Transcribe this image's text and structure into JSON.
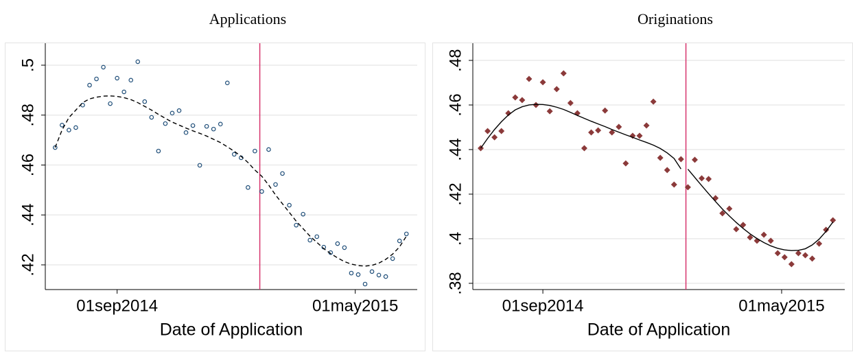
{
  "chart_data": [
    {
      "type": "scatter",
      "title": "Applications",
      "xlabel": "Date of Application",
      "x": [
        "2014-06-30",
        "2014-07-07",
        "2014-07-14",
        "2014-07-21",
        "2014-07-28",
        "2014-08-04",
        "2014-08-11",
        "2014-08-18",
        "2014-08-25",
        "2014-09-01",
        "2014-09-08",
        "2014-09-15",
        "2014-09-22",
        "2014-09-29",
        "2014-10-06",
        "2014-10-13",
        "2014-10-20",
        "2014-10-27",
        "2014-11-03",
        "2014-11-10",
        "2014-11-17",
        "2014-11-24",
        "2014-12-01",
        "2014-12-08",
        "2014-12-15",
        "2014-12-22",
        "2014-12-29",
        "2015-01-05",
        "2015-01-12",
        "2015-01-19",
        "2015-01-26",
        "2015-02-02",
        "2015-02-09",
        "2015-02-16",
        "2015-02-23",
        "2015-03-02",
        "2015-03-09",
        "2015-03-16",
        "2015-03-23",
        "2015-03-30",
        "2015-04-06",
        "2015-04-13",
        "2015-04-20",
        "2015-04-27",
        "2015-05-04",
        "2015-05-11",
        "2015-05-18",
        "2015-05-25",
        "2015-06-01",
        "2015-06-08",
        "2015-06-15",
        "2015-06-22"
      ],
      "points": {
        "color": "#1f4e79",
        "marker": "circle",
        "values": [
          0.467,
          0.476,
          0.474,
          0.475,
          0.484,
          0.492,
          0.4945,
          0.4992,
          0.4846,
          0.4948,
          0.4893,
          0.494,
          0.5014,
          0.4854,
          0.4791,
          0.4656,
          0.4766,
          0.4808,
          0.4818,
          0.473,
          0.4758,
          0.4599,
          0.4755,
          0.4744,
          0.4764,
          0.4929,
          0.4643,
          0.4629,
          0.451,
          0.4656,
          0.4494,
          0.4662,
          0.4522,
          0.4566,
          0.4439,
          0.4359,
          0.4403,
          0.4299,
          0.4313,
          0.4271,
          0.4249,
          0.4285,
          0.4269,
          0.4167,
          0.4161,
          0.4123,
          0.4173,
          0.4159,
          0.4153,
          0.4225,
          0.4296,
          0.4324
        ]
      },
      "fit": [
        {
          "color": "#000000",
          "dashed": true,
          "values": [
            0.467,
            0.474,
            0.479,
            0.482,
            0.485,
            0.4865,
            0.4872,
            0.4876,
            0.4877,
            0.4875,
            0.487,
            0.4862,
            0.485,
            0.4835,
            0.482,
            0.4803,
            0.4787,
            0.4772,
            0.476,
            0.4748,
            0.4737,
            0.4727,
            0.4716,
            0.4703,
            0.469,
            0.4673,
            0.4655,
            0.4635,
            0.461,
            0.458,
            0.4555,
            0.452,
            0.448,
            0.4445,
            0.441,
            0.4375,
            0.4345,
            0.4315,
            0.429,
            0.4265,
            0.4245,
            0.4228,
            0.4213,
            0.4203,
            0.4197,
            0.4195,
            0.4198,
            0.4207,
            0.4222,
            0.4243,
            0.4272,
            0.4315
          ]
        }
      ],
      "cutoff": "2015-01-24",
      "cutoff_color": "#d6336c",
      "xlim": [
        "2014-06-20",
        "2015-07-03"
      ],
      "xticks": [
        {
          "value": "2014-09-01",
          "label": "01sep2014"
        },
        {
          "value": "2015-05-01",
          "label": "01may2015"
        }
      ],
      "ylim": [
        0.4101,
        0.5088
      ],
      "yticks": [
        {
          "value": 0.42,
          "label": ".42"
        },
        {
          "value": 0.44,
          "label": ".44"
        },
        {
          "value": 0.46,
          "label": ".46"
        },
        {
          "value": 0.48,
          "label": ".48"
        },
        {
          "value": 0.5,
          "label": ".5"
        }
      ],
      "grid": true
    },
    {
      "type": "scatter",
      "title": "Originations",
      "xlabel": "Date of Application",
      "x": [
        "2014-06-30",
        "2014-07-07",
        "2014-07-14",
        "2014-07-21",
        "2014-07-28",
        "2014-08-04",
        "2014-08-11",
        "2014-08-18",
        "2014-08-25",
        "2014-09-01",
        "2014-09-08",
        "2014-09-15",
        "2014-09-22",
        "2014-09-29",
        "2014-10-06",
        "2014-10-13",
        "2014-10-20",
        "2014-10-27",
        "2014-11-03",
        "2014-11-10",
        "2014-11-17",
        "2014-11-24",
        "2014-12-01",
        "2014-12-08",
        "2014-12-15",
        "2014-12-22",
        "2014-12-29",
        "2015-01-05",
        "2015-01-12",
        "2015-01-19",
        "2015-01-26",
        "2015-02-02",
        "2015-02-09",
        "2015-02-16",
        "2015-02-23",
        "2015-03-02",
        "2015-03-09",
        "2015-03-16",
        "2015-03-23",
        "2015-03-30",
        "2015-04-06",
        "2015-04-13",
        "2015-04-20",
        "2015-04-27",
        "2015-05-04",
        "2015-05-11",
        "2015-05-18",
        "2015-05-25",
        "2015-06-01",
        "2015-06-08",
        "2015-06-15",
        "2015-06-22"
      ],
      "points": {
        "color": "#8b3a3a",
        "marker": "diamond",
        "values": [
          0.4406,
          0.4483,
          0.4455,
          0.4483,
          0.4563,
          0.4634,
          0.4622,
          0.4717,
          0.46,
          0.4702,
          0.4572,
          0.4671,
          0.4742,
          0.4609,
          0.4563,
          0.4406,
          0.4477,
          0.4486,
          0.4575,
          0.4477,
          0.4502,
          0.4338,
          0.4462,
          0.4462,
          0.4508,
          0.4615,
          0.4363,
          0.4308,
          0.4243,
          0.4357,
          0.4231,
          0.4354,
          0.4271,
          0.4268,
          0.4182,
          0.4114,
          0.4135,
          0.4043,
          0.4062,
          0.4006,
          0.3991,
          0.4018,
          0.3991,
          0.3935,
          0.3917,
          0.3886,
          0.3935,
          0.3926,
          0.3911,
          0.3978,
          0.404,
          0.4083
        ]
      },
      "fit": [
        {
          "color": "#000000",
          "dashed": false,
          "values": [
            0.4406,
            0.445,
            0.449,
            0.4525,
            0.4555,
            0.4578,
            0.4592,
            0.46,
            0.4603,
            0.4602,
            0.4598,
            0.459,
            0.458,
            0.4567,
            0.4553,
            0.454,
            0.4527,
            0.4515,
            0.4503,
            0.449,
            0.4478,
            0.4466,
            0.4455,
            0.4443,
            0.4432,
            0.442,
            0.4405,
            0.4385,
            0.436,
            0.4313,
            null,
            null,
            null,
            null,
            null,
            null,
            null,
            null,
            null,
            null,
            null,
            null,
            null,
            null,
            null,
            null,
            null,
            null,
            null,
            null,
            null,
            null
          ]
        },
        {
          "color": "#000000",
          "dashed": false,
          "values": [
            null,
            null,
            null,
            null,
            null,
            null,
            null,
            null,
            null,
            null,
            null,
            null,
            null,
            null,
            null,
            null,
            null,
            null,
            null,
            null,
            null,
            null,
            null,
            null,
            null,
            null,
            null,
            null,
            null,
            null,
            0.4312,
            0.4275,
            0.4238,
            0.4202,
            0.4167,
            0.4133,
            0.4102,
            0.4073,
            0.4046,
            0.4022,
            0.4001,
            0.3983,
            0.3968,
            0.3957,
            0.395,
            0.3947,
            0.3948,
            0.3955,
            0.3972,
            0.3998,
            0.4033,
            0.4075
          ]
        }
      ],
      "cutoff": "2015-01-24",
      "cutoff_color": "#d6336c",
      "xlim": [
        "2014-06-22",
        "2015-07-04"
      ],
      "xticks": [
        {
          "value": "2014-09-01",
          "label": "01sep2014"
        },
        {
          "value": "2015-05-01",
          "label": "01may2015"
        }
      ],
      "ylim": [
        0.3772,
        0.4877
      ],
      "yticks": [
        {
          "value": 0.38,
          "label": ".38"
        },
        {
          "value": 0.4,
          "label": ".4"
        },
        {
          "value": 0.42,
          "label": ".42"
        },
        {
          "value": 0.44,
          "label": ".44"
        },
        {
          "value": 0.46,
          "label": ".46"
        },
        {
          "value": 0.48,
          "label": ".48"
        }
      ],
      "grid": true
    }
  ]
}
